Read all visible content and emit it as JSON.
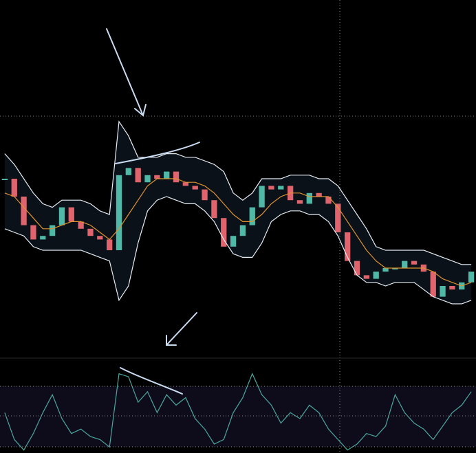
{
  "chart_data": {
    "type": "candlestick",
    "categories": [
      null,
      null,
      null,
      null,
      null,
      null,
      null,
      null,
      null,
      null,
      null,
      null,
      null,
      null,
      null,
      null,
      null,
      null,
      null,
      null,
      null,
      null,
      null,
      null,
      null,
      null,
      null,
      null,
      null,
      null,
      null,
      null,
      null,
      null,
      null,
      null,
      null,
      null,
      null,
      null,
      null,
      null,
      null,
      null,
      null,
      null,
      null,
      null,
      null,
      null
    ],
    "ylim": [
      0,
      100
    ],
    "y2lim": [
      25,
      88
    ],
    "band_fill": "#0a1118",
    "series": [
      {
        "up_color": "#4fb8a6",
        "down_color": "#e0646e",
        "values": [
          50,
          45,
          37,
          33,
          34,
          37,
          42,
          38,
          36,
          34,
          33,
          30,
          51,
          53,
          49,
          51,
          50,
          52,
          49,
          48,
          47,
          44,
          39,
          31,
          34,
          37,
          42,
          48,
          47,
          48,
          44,
          43,
          46,
          45,
          43,
          35,
          27,
          23,
          22,
          24,
          25,
          25,
          27,
          26,
          24,
          17,
          20,
          19,
          21,
          24
        ]
      },
      {
        "color": "#e0932f",
        "values": [
          46,
          45,
          42,
          39,
          36,
          36,
          37,
          38,
          38,
          37,
          35,
          33,
          36,
          40,
          44,
          48,
          50,
          50,
          50,
          49,
          49,
          48,
          46,
          43,
          40,
          38,
          38,
          40,
          43,
          45,
          46,
          46,
          45,
          45,
          45,
          42,
          38,
          34,
          30,
          27,
          25,
          25,
          25,
          25,
          25,
          24,
          22,
          21,
          20,
          21
        ]
      },
      {
        "color": "#e8eef5",
        "values": [
          57,
          54,
          50,
          46,
          43,
          42,
          44,
          44,
          44,
          43,
          41,
          40,
          66,
          62,
          56,
          56,
          56,
          57,
          57,
          56,
          56,
          55,
          54,
          52,
          46,
          44,
          46,
          50,
          50,
          50,
          51,
          51,
          51,
          50,
          50,
          48,
          44,
          40,
          36,
          31,
          30,
          30,
          30,
          30,
          30,
          29,
          28,
          27,
          26,
          26
        ]
      },
      {
        "color": "#e8eef5",
        "values": [
          36,
          35,
          34,
          31,
          30,
          30,
          30,
          30,
          30,
          29,
          28,
          27,
          16,
          20,
          32,
          41,
          44,
          45,
          44,
          43,
          43,
          41,
          38,
          33,
          29,
          28,
          28,
          32,
          38,
          40,
          41,
          41,
          40,
          40,
          38,
          34,
          28,
          23,
          21,
          21,
          20,
          21,
          21,
          21,
          19,
          17,
          16,
          15,
          15,
          16
        ]
      },
      {
        "color": "#4aa9a0",
        "axis": "y2",
        "values": [
          52,
          34,
          27,
          38,
          52,
          64,
          48,
          38,
          41,
          36,
          34,
          29,
          78,
          76,
          59,
          66,
          52,
          64,
          57,
          62,
          48,
          41,
          31,
          34,
          52,
          62,
          78,
          64,
          57,
          45,
          52,
          48,
          57,
          52,
          41,
          34,
          27,
          31,
          38,
          36,
          43,
          64,
          52,
          45,
          41,
          34,
          43,
          52,
          57,
          66
        ]
      }
    ]
  }
}
